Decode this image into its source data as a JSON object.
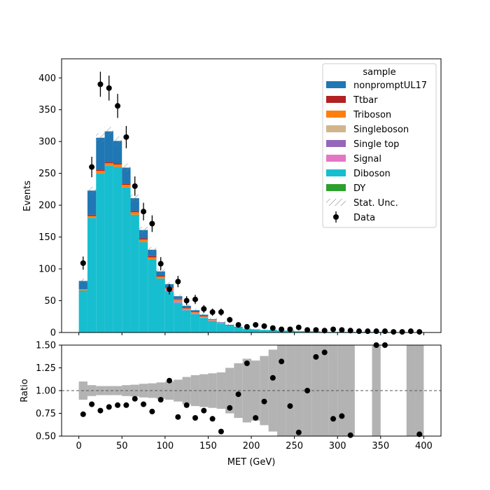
{
  "chart_data": {
    "type": "bar",
    "subtype": "stacked-histogram-with-ratio",
    "x_bin_width": 10,
    "x_bin_starts": [
      0,
      10,
      20,
      30,
      40,
      50,
      60,
      70,
      80,
      90,
      100,
      110,
      120,
      130,
      140,
      150,
      160,
      170,
      180,
      190,
      200,
      210,
      220,
      230,
      240,
      250,
      260,
      270,
      280,
      290,
      300,
      310,
      320,
      330,
      340,
      350,
      360,
      370,
      380,
      390
    ],
    "xlabel": "MET (GeV)",
    "xlim": [
      -20,
      420
    ],
    "x_ticks": [
      0,
      50,
      100,
      150,
      200,
      250,
      300,
      350,
      400
    ],
    "main_panel": {
      "ylabel": "Events",
      "ylim": [
        0,
        430
      ],
      "y_ticks": [
        0,
        50,
        100,
        150,
        200,
        250,
        300,
        350,
        400
      ],
      "series": [
        {
          "name": "Diboson",
          "color": "#17becf",
          "values": [
            66,
            180,
            250,
            262,
            260,
            228,
            185,
            142,
            115,
            85,
            65,
            47,
            35,
            29,
            23,
            18,
            14,
            11,
            8,
            6,
            5,
            4,
            4,
            3,
            3,
            2,
            2,
            2,
            1,
            1,
            1,
            1,
            1,
            1,
            1,
            1,
            0,
            0,
            0,
            0
          ]
        },
        {
          "name": "Signal",
          "color": "#e377c2",
          "values": [
            0,
            0,
            0,
            0,
            0,
            0,
            0,
            0,
            0,
            0,
            3,
            3,
            2,
            2,
            1,
            1,
            1,
            0,
            0,
            0,
            0,
            0,
            0,
            0,
            0,
            0,
            0,
            0,
            0,
            0,
            0,
            0,
            0,
            0,
            0,
            0,
            0,
            0,
            0,
            0
          ]
        },
        {
          "name": "Single top",
          "color": "#9467bd",
          "values": [
            0,
            0,
            0,
            0,
            0,
            0,
            0,
            0,
            0,
            0,
            0,
            0,
            0,
            0,
            0,
            0,
            0,
            0,
            0,
            0,
            0,
            0,
            0,
            0,
            0,
            0,
            0,
            0,
            0,
            0,
            0,
            0,
            0,
            0,
            0,
            0,
            0,
            0,
            0,
            0
          ]
        },
        {
          "name": "Singleboson",
          "color": "#d2b48c",
          "values": [
            0,
            0,
            0,
            0,
            0,
            0,
            0,
            0,
            0,
            0,
            0,
            0,
            0,
            0,
            0,
            0,
            0,
            0,
            0,
            0,
            0,
            0,
            0,
            0,
            0,
            0,
            0,
            0,
            0,
            0,
            0,
            0,
            0,
            0,
            0,
            0,
            0,
            0,
            0,
            0
          ]
        },
        {
          "name": "Triboson",
          "color": "#ff7f0e",
          "values": [
            2,
            3,
            4,
            4,
            4,
            4,
            4,
            4,
            3,
            3,
            2,
            2,
            1,
            1,
            1,
            1,
            0,
            0,
            0,
            0,
            0,
            0,
            0,
            0,
            0,
            0,
            0,
            0,
            0,
            0,
            0,
            0,
            0,
            0,
            0,
            0,
            0,
            0,
            0,
            0
          ]
        },
        {
          "name": "Ttbar",
          "color": "#b22222",
          "values": [
            0,
            2,
            2,
            2,
            2,
            2,
            2,
            2,
            2,
            2,
            1,
            1,
            1,
            1,
            1,
            0,
            0,
            0,
            0,
            0,
            0,
            0,
            0,
            0,
            0,
            0,
            0,
            0,
            0,
            0,
            0,
            0,
            0,
            0,
            0,
            0,
            0,
            0,
            0,
            0
          ]
        },
        {
          "name": "nonpromptUL17",
          "color": "#1f77b4",
          "values": [
            13,
            38,
            50,
            48,
            35,
            25,
            20,
            13,
            10,
            6,
            5,
            4,
            3,
            2,
            2,
            1,
            1,
            1,
            1,
            0,
            0,
            0,
            0,
            0,
            0,
            0,
            0,
            0,
            0,
            0,
            0,
            0,
            0,
            0,
            0,
            0,
            0,
            0,
            0,
            0
          ]
        },
        {
          "name": "DY",
          "color": "#2ca02c",
          "values": [
            0,
            0,
            0,
            0,
            0,
            0,
            0,
            0,
            0,
            0,
            0,
            0,
            0,
            0,
            0,
            0,
            0,
            0,
            0,
            0,
            0,
            0,
            0,
            0,
            0,
            0,
            0,
            0,
            0,
            0,
            0,
            0,
            0,
            0,
            0,
            0,
            0,
            0,
            0,
            0
          ]
        }
      ],
      "data": {
        "name": "Data",
        "values": [
          109,
          260,
          390,
          384,
          356,
          307,
          230,
          190,
          171,
          108,
          68,
          80,
          50,
          52,
          37,
          32,
          32,
          20,
          12,
          9,
          12,
          10,
          7,
          5,
          5,
          8,
          4,
          4,
          3,
          5,
          4,
          3,
          2,
          2,
          2,
          2,
          1,
          1,
          2,
          1
        ],
        "errors": [
          10.4,
          16.1,
          19.7,
          19.6,
          18.9,
          17.5,
          15.2,
          13.8,
          13.1,
          10.4,
          8.2,
          8.9,
          7.1,
          7.2,
          6.1,
          5.7,
          5.7,
          4.5,
          3.5,
          3,
          3.5,
          3.2,
          2.6,
          2.2,
          2.2,
          2.8,
          2,
          2,
          1.7,
          2.2,
          2,
          1.7,
          1.4,
          1.4,
          1.4,
          1.4,
          1,
          1,
          1.4,
          1
        ]
      }
    },
    "ratio_panel": {
      "ylabel": "Ratio",
      "ylim": [
        0.5,
        1.5
      ],
      "y_ticks": [
        "0.50",
        "0.75",
        "1.00",
        "1.25",
        "1.50"
      ],
      "reference_line": 1.0,
      "ratio_values": [
        0.74,
        0.85,
        0.78,
        0.82,
        0.84,
        0.84,
        0.91,
        0.85,
        0.77,
        0.9,
        1.11,
        0.71,
        0.84,
        0.7,
        0.78,
        0.69,
        0.55,
        0.81,
        0.96,
        1.3,
        0.7,
        0.88,
        1.14,
        1.32,
        0.83,
        0.54,
        1.0,
        1.37,
        1.42,
        0.69,
        0.72,
        0.51,
        null,
        null,
        1.5,
        1.5,
        null,
        null,
        null,
        0.52
      ],
      "unc_half_width": [
        0.1,
        0.06,
        0.05,
        0.05,
        0.05,
        0.06,
        0.065,
        0.075,
        0.08,
        0.09,
        0.1,
        0.12,
        0.15,
        0.17,
        0.18,
        0.19,
        0.2,
        0.25,
        0.3,
        0.35,
        0.33,
        0.38,
        0.45,
        0.5,
        0.55,
        0.62,
        0.65,
        0.7,
        0.72,
        0.75,
        0.8,
        0.9,
        0,
        0,
        1.0,
        0,
        0,
        0,
        1.0,
        1.0
      ]
    },
    "legend": {
      "title": "sample",
      "placement": "top-right",
      "entries": [
        {
          "label": "nonpromptUL17",
          "kind": "patch",
          "color": "#1f77b4"
        },
        {
          "label": "Ttbar",
          "kind": "patch",
          "color": "#b22222"
        },
        {
          "label": "Triboson",
          "kind": "patch",
          "color": "#ff7f0e"
        },
        {
          "label": "Singleboson",
          "kind": "patch",
          "color": "#d2b48c"
        },
        {
          "label": "Single top",
          "kind": "patch",
          "color": "#9467bd"
        },
        {
          "label": "Signal",
          "kind": "patch",
          "color": "#e377c2"
        },
        {
          "label": "Diboson",
          "kind": "patch",
          "color": "#17becf"
        },
        {
          "label": "DY",
          "kind": "patch",
          "color": "#2ca02c"
        },
        {
          "label": "Stat. Unc.",
          "kind": "hatch",
          "color": "#808080"
        },
        {
          "label": "Data",
          "kind": "marker",
          "color": "#000000"
        }
      ]
    },
    "unc_color": "#b3b3b3",
    "grid": false
  }
}
